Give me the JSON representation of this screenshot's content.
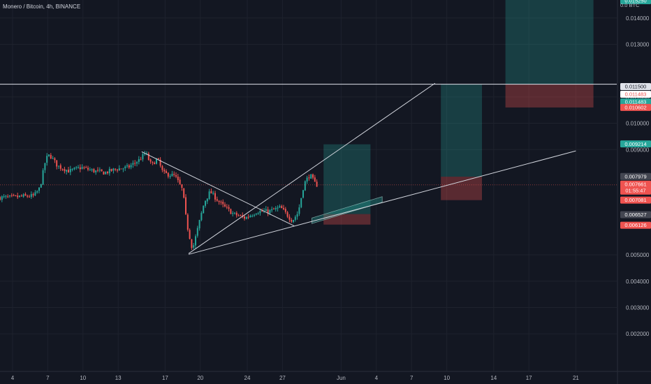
{
  "header": {
    "title": "Monero / Bitcoin, 4h, BINANCE"
  },
  "colors": {
    "background": "#131722",
    "grid": "#1e222d",
    "up": "#26a69a",
    "down": "#ef5350",
    "line": "#d1d4dc",
    "target_fill": "rgba(38,166,154,0.28)",
    "stop_fill": "rgba(239,83,80,0.32)"
  },
  "chart_data": {
    "type": "candlestick",
    "title": "Monero / Bitcoin, 4h, BINANCE",
    "currency_label": "BTC",
    "scale_mode_label": "0.0",
    "grid": true,
    "ylim": [
      0.0012,
      0.0153
    ],
    "x_dates": [
      "2021-05-04",
      "2021-06-23"
    ],
    "x_tick_labels": [
      {
        "label": "4",
        "date": "2021-05-04"
      },
      {
        "label": "7",
        "date": "2021-05-07"
      },
      {
        "label": "10",
        "date": "2021-05-10"
      },
      {
        "label": "13",
        "date": "2021-05-13"
      },
      {
        "label": "17",
        "date": "2021-05-17"
      },
      {
        "label": "20",
        "date": "2021-05-20"
      },
      {
        "label": "24",
        "date": "2021-05-24"
      },
      {
        "label": "27",
        "date": "2021-05-27"
      },
      {
        "label": "Jun",
        "date": "2021-06-01"
      },
      {
        "label": "4",
        "date": "2021-06-04"
      },
      {
        "label": "7",
        "date": "2021-06-07"
      },
      {
        "label": "10",
        "date": "2021-06-10"
      },
      {
        "label": "14",
        "date": "2021-06-14"
      },
      {
        "label": "17",
        "date": "2021-06-17"
      },
      {
        "label": "21",
        "date": "2021-06-21"
      }
    ],
    "y_tick_labels": [
      "0.014000",
      "0.013000",
      "0.011000",
      "0.010000",
      "0.009000",
      "0.005000",
      "0.004000",
      "0.003000",
      "0.002000"
    ],
    "price_path": [
      [
        "2021-05-04T00:00",
        0.00718
      ],
      [
        "2021-05-05T00:00",
        0.00722
      ],
      [
        "2021-05-06T00:00",
        0.00724
      ],
      [
        "2021-05-06T12:00",
        0.00755
      ],
      [
        "2021-05-07T00:00",
        0.00865
      ],
      [
        "2021-05-07T08:00",
        0.0088
      ],
      [
        "2021-05-08T00:00",
        0.00838
      ],
      [
        "2021-05-09T00:00",
        0.00818
      ],
      [
        "2021-05-10T00:00",
        0.00832
      ],
      [
        "2021-05-11T00:00",
        0.0082
      ],
      [
        "2021-05-12T00:00",
        0.00812
      ],
      [
        "2021-05-13T00:00",
        0.00826
      ],
      [
        "2021-05-14T00:00",
        0.00832
      ],
      [
        "2021-05-15T00:00",
        0.00862
      ],
      [
        "2021-05-15T12:00",
        0.00888
      ],
      [
        "2021-05-16T00:00",
        0.0084
      ],
      [
        "2021-05-16T12:00",
        0.00866
      ],
      [
        "2021-05-17T00:00",
        0.0081
      ],
      [
        "2021-05-18T00:00",
        0.008
      ],
      [
        "2021-05-18T16:00",
        0.00745
      ],
      [
        "2021-05-19T00:00",
        0.0062
      ],
      [
        "2021-05-19T12:00",
        0.0052
      ],
      [
        "2021-05-20T00:00",
        0.0061
      ],
      [
        "2021-05-20T12:00",
        0.007
      ],
      [
        "2021-05-21T00:00",
        0.0074
      ],
      [
        "2021-05-22T00:00",
        0.0069
      ],
      [
        "2021-05-23T00:00",
        0.00655
      ],
      [
        "2021-05-24T00:00",
        0.0064
      ],
      [
        "2021-05-25T00:00",
        0.00665
      ],
      [
        "2021-05-26T00:00",
        0.00665
      ],
      [
        "2021-05-27T00:00",
        0.0068
      ],
      [
        "2021-05-28T00:00",
        0.0063
      ],
      [
        "2021-05-28T12:00",
        0.0066
      ],
      [
        "2021-05-29T00:00",
        0.0077
      ],
      [
        "2021-05-29T12:00",
        0.00805
      ],
      [
        "2021-05-30T00:00",
        0.00766
      ]
    ],
    "trend_lines": [
      {
        "from": [
          "2021-05-19T00:00",
          0.00505
        ],
        "to": [
          "2021-06-09T00:00",
          0.01152
        ]
      },
      {
        "from": [
          "2021-05-19T00:00",
          0.00502
        ],
        "to": [
          "2021-06-21T00:00",
          0.00895
        ]
      },
      {
        "from": [
          "2021-05-15T00:00",
          0.00892
        ],
        "to": [
          "2021-05-28T00:00",
          0.0061
        ]
      }
    ],
    "horizontal_line": {
      "price": 0.011483
    },
    "current_price_line": {
      "price": 0.007661
    },
    "positions": [
      {
        "start": "2021-05-30T12:00",
        "end": "2021-06-03T12:00",
        "entry": 0.00655,
        "target": 0.0092,
        "stop": 0.00615
      },
      {
        "start": "2021-06-09T12:00",
        "end": "2021-06-13T00:00",
        "entry": 0.00797,
        "target": 0.01148,
        "stop": 0.00708
      },
      {
        "start": "2021-06-15T00:00",
        "end": "2021-06-22T12:00",
        "entry": 0.01148,
        "target": 0.0153,
        "stop": 0.0106
      }
    ],
    "channel_box": {
      "from": [
        "2021-05-29T12:00",
        0.0064
      ],
      "to": [
        "2021-06-04T12:00",
        0.007
      ]
    },
    "price_tags": [
      {
        "label": "0.015250",
        "price": 0.0153,
        "style": "teal"
      },
      {
        "label": "0.011500",
        "price": 0.0115,
        "style": "light-dark-text",
        "offset": 0
      },
      {
        "label": "0.011483",
        "price": 0.011483,
        "style": "white-red-text",
        "offset": 11
      },
      {
        "label": "0.011483",
        "price": 0.011483,
        "style": "teal",
        "offset": 22
      },
      {
        "label": "0.010602",
        "price": 0.010602,
        "style": "red"
      },
      {
        "label": "0.009214",
        "price": 0.009214,
        "style": "teal"
      },
      {
        "label": "0.007979",
        "price": 0.007979,
        "style": "gray"
      },
      {
        "label": "0.007661",
        "sub": "01:55:47",
        "price": 0.007661,
        "style": "red-double"
      },
      {
        "label": "0.007081",
        "price": 0.007081,
        "style": "red"
      },
      {
        "label": "0.006527",
        "price": 0.006527,
        "style": "gray"
      },
      {
        "label": "0.006126",
        "price": 0.006126,
        "style": "red"
      }
    ]
  }
}
